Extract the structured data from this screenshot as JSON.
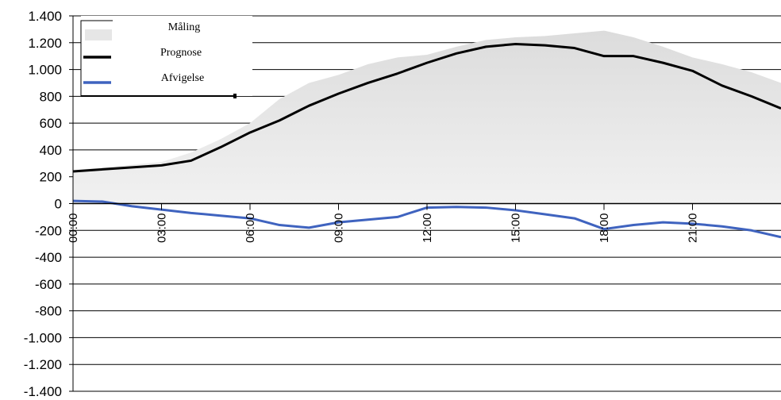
{
  "chart_data": {
    "type": "area",
    "title": "",
    "xlabel": "",
    "ylabel": "",
    "ylim": [
      -1400,
      1400
    ],
    "xlim": [
      0,
      24
    ],
    "y_ticks": [
      1400,
      1200,
      1000,
      800,
      600,
      400,
      200,
      0,
      -200,
      -400,
      -600,
      -800,
      -1000,
      -1200,
      -1400
    ],
    "y_tick_labels": [
      "1.400",
      "1.200",
      "1.000",
      "800",
      "600",
      "400",
      "200",
      "0",
      "-200",
      "-400",
      "-600",
      "-800",
      "-1.000",
      "-1.200",
      "-1.400"
    ],
    "x_ticks": [
      0,
      3,
      6,
      9,
      12,
      15,
      18,
      21
    ],
    "x_tick_labels": [
      "00:00",
      "03:00",
      "06:00",
      "09:00",
      "12:00",
      "15:00",
      "18:00",
      "21:00"
    ],
    "grid": "horizontal",
    "legend": {
      "position": "top-left",
      "entries": [
        "Måling",
        "Prognose",
        "Afvigelse"
      ]
    },
    "colors": {
      "maaling": "#e6e6e6",
      "prognose": "#000000",
      "afvigelse": "#3f63bf",
      "grid": "#000000"
    },
    "x": [
      0,
      1,
      2,
      3,
      4,
      5,
      6,
      7,
      8,
      9,
      10,
      11,
      12,
      13,
      14,
      15,
      16,
      17,
      18,
      19,
      20,
      21,
      22,
      23,
      24
    ],
    "series": [
      {
        "name": "Måling",
        "kind": "area",
        "values": [
          250,
          270,
          290,
          310,
          380,
          480,
          600,
          780,
          900,
          960,
          1040,
          1090,
          1110,
          1170,
          1220,
          1240,
          1250,
          1270,
          1290,
          1240,
          1170,
          1090,
          1040,
          980,
          900
        ]
      },
      {
        "name": "Prognose",
        "kind": "line",
        "values": [
          240,
          255,
          270,
          285,
          320,
          420,
          530,
          620,
          730,
          820,
          900,
          970,
          1050,
          1120,
          1170,
          1190,
          1180,
          1160,
          1100,
          1100,
          1050,
          990,
          880,
          800,
          710
        ]
      },
      {
        "name": "Afvigelse",
        "kind": "line",
        "values": [
          20,
          15,
          -20,
          -45,
          -70,
          -90,
          -110,
          -160,
          -180,
          -140,
          -120,
          -100,
          -30,
          -25,
          -30,
          -50,
          -80,
          -110,
          -190,
          -160,
          -140,
          -150,
          -170,
          -200,
          -250
        ]
      }
    ]
  }
}
